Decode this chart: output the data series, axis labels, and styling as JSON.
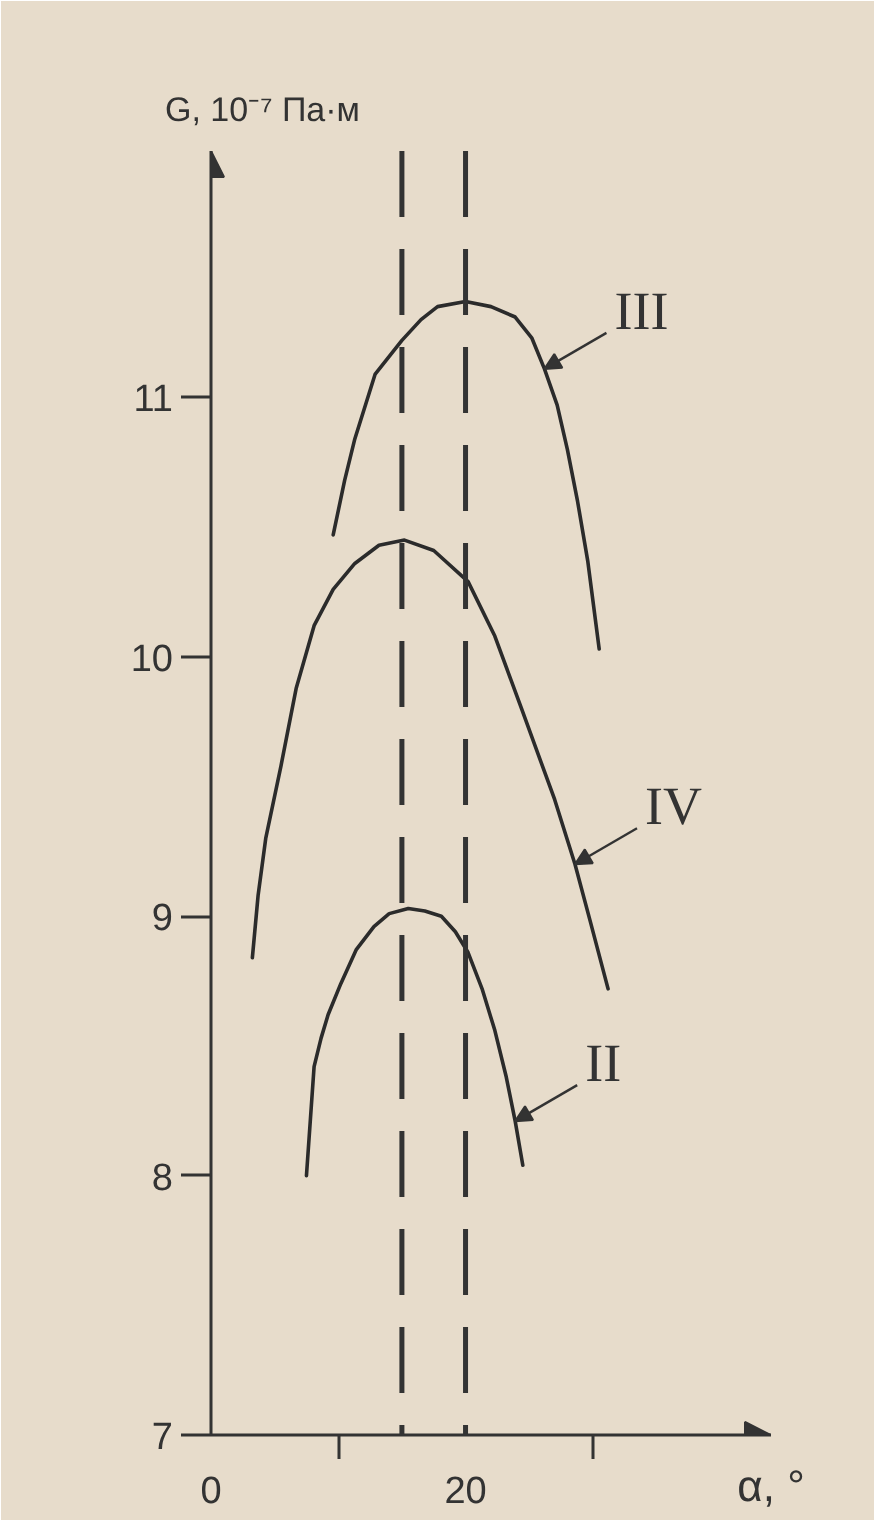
{
  "chart_data": {
    "type": "line",
    "xlabel": "α, °",
    "ylabel": "G, 10⁻⁷ Па·м",
    "xlim": [
      0,
      44
    ],
    "ylim": [
      7,
      11.95
    ],
    "xticks": [
      0,
      {
        "value": 10,
        "label": null
      },
      20,
      {
        "value": 30,
        "label": null
      }
    ],
    "yticks": [
      7,
      8,
      9,
      10,
      11
    ],
    "grid": false,
    "series": [
      {
        "color": "#2b2b2b",
        "x": [
          9.6,
          10.5,
          11.3,
          12.9,
          15.0,
          16.5,
          17.8,
          20.0,
          22.0,
          23.9,
          25.2,
          26.2,
          27.2,
          28.0,
          28.8,
          29.6,
          30.5
        ],
        "values": [
          10.47,
          10.68,
          10.84,
          11.09,
          11.22,
          11.3,
          11.35,
          11.37,
          11.35,
          11.31,
          11.23,
          11.11,
          10.97,
          10.8,
          10.6,
          10.37,
          10.03
        ]
      },
      {
        "color": "#2b2b2b",
        "x": [
          3.25,
          3.7,
          4.3,
          5.5,
          6.7,
          8.1,
          9.6,
          11.3,
          13.2,
          15.2,
          17.5,
          20.2,
          22.3,
          24.4,
          27.0,
          28.6,
          29.8,
          31.2
        ],
        "values": [
          8.84,
          9.08,
          9.3,
          9.58,
          9.88,
          10.12,
          10.26,
          10.36,
          10.43,
          10.45,
          10.41,
          10.29,
          10.08,
          9.8,
          9.45,
          9.2,
          8.98,
          8.72
        ]
      },
      {
        "color": "#2b2b2b",
        "x": [
          7.5,
          8.1,
          8.65,
          9.2,
          10.2,
          11.4,
          12.8,
          14.0,
          15.5,
          16.8,
          18.1,
          19.2,
          20.2,
          21.3,
          22.3,
          23.2,
          23.9,
          24.5
        ],
        "values": [
          8.0,
          8.42,
          8.53,
          8.62,
          8.74,
          8.87,
          8.96,
          9.01,
          9.03,
          9.02,
          9.0,
          8.94,
          8.86,
          8.72,
          8.56,
          8.38,
          8.21,
          8.04
        ]
      }
    ],
    "ref_lines": [
      {
        "axis": "x",
        "value": 15,
        "line_style": "dashed",
        "color": "#333333"
      },
      {
        "axis": "x",
        "value": 20,
        "line_style": "dashed",
        "color": "#333333"
      }
    ],
    "annotations": [
      {
        "text": "III",
        "x": 26.2,
        "y": 11.11
      },
      {
        "text": "IV",
        "x": 28.6,
        "y": 9.2
      },
      {
        "text": "II",
        "x": 23.9,
        "y": 8.21
      }
    ]
  }
}
